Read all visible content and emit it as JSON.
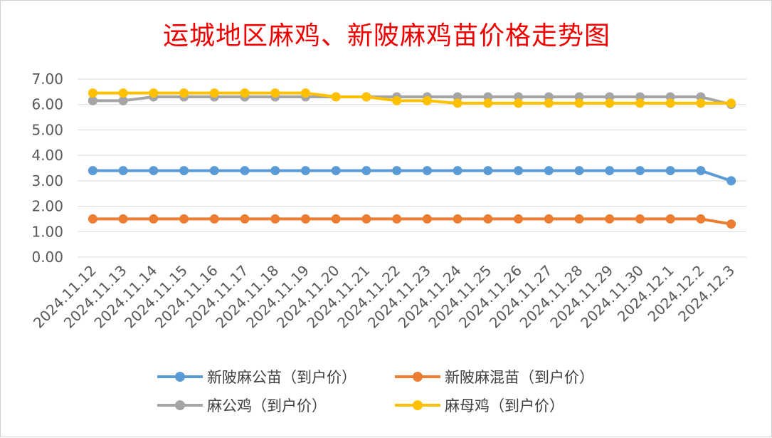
{
  "chart_data": {
    "type": "line",
    "title": "运城地区麻鸡、新陂麻鸡苗价格走势图",
    "xlabel": "",
    "ylabel": "",
    "categories": [
      "2024.11.12",
      "2024.11.13",
      "2024.11.14",
      "2024.11.15",
      "2024.11.16",
      "2024.11.17",
      "2024.11.18",
      "2024.11.19",
      "2024.11.20",
      "2024.11.21",
      "2024.11.22",
      "2024.11.23",
      "2024.11.24",
      "2024.11.25",
      "2024.11.26",
      "2024.11.27",
      "2024.11.28",
      "2024.11.29",
      "2024.11.30",
      "2024.12.1",
      "2024.12.2",
      "2024.12.3"
    ],
    "ylim": [
      0,
      7
    ],
    "yticks": [
      "0.00",
      "1.00",
      "2.00",
      "3.00",
      "4.00",
      "5.00",
      "6.00",
      "7.00"
    ],
    "grid": true,
    "legend_position": "bottom",
    "series": [
      {
        "name": "新陂麻公苗（到户价）",
        "color": "#5b9bd5",
        "values": [
          3.4,
          3.4,
          3.4,
          3.4,
          3.4,
          3.4,
          3.4,
          3.4,
          3.4,
          3.4,
          3.4,
          3.4,
          3.4,
          3.4,
          3.4,
          3.4,
          3.4,
          3.4,
          3.4,
          3.4,
          3.4,
          3.0
        ]
      },
      {
        "name": "新陂麻混苗（到户价）",
        "color": "#ed7d31",
        "values": [
          1.5,
          1.5,
          1.5,
          1.5,
          1.5,
          1.5,
          1.5,
          1.5,
          1.5,
          1.5,
          1.5,
          1.5,
          1.5,
          1.5,
          1.5,
          1.5,
          1.5,
          1.5,
          1.5,
          1.5,
          1.5,
          1.3
        ]
      },
      {
        "name": "麻公鸡（到户价）",
        "color": "#a5a5a5",
        "values": [
          6.15,
          6.15,
          6.3,
          6.3,
          6.3,
          6.3,
          6.3,
          6.3,
          6.3,
          6.3,
          6.3,
          6.3,
          6.3,
          6.3,
          6.3,
          6.3,
          6.3,
          6.3,
          6.3,
          6.3,
          6.3,
          6.0
        ]
      },
      {
        "name": "麻母鸡（到户价）",
        "color": "#ffc000",
        "values": [
          6.45,
          6.45,
          6.45,
          6.45,
          6.45,
          6.45,
          6.45,
          6.45,
          6.3,
          6.3,
          6.15,
          6.15,
          6.05,
          6.05,
          6.05,
          6.05,
          6.05,
          6.05,
          6.05,
          6.05,
          6.05,
          6.05
        ]
      }
    ]
  }
}
